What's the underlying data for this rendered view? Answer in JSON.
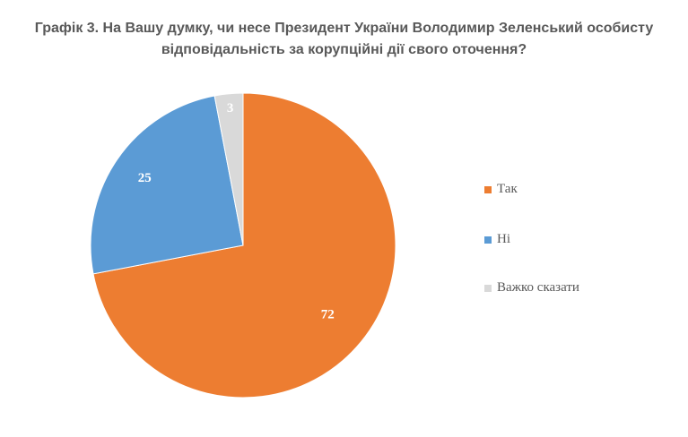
{
  "chart_data": {
    "type": "pie",
    "title_lines": [
      "Графік 3. На Вашу думку, чи несе Президент України Володимир Зеленський особисту",
      "відповідальність за корупційні дії свого оточення?"
    ],
    "categories": [
      "Так",
      "Ні",
      "Важко сказати"
    ],
    "values": [
      72,
      25,
      3
    ],
    "colors": [
      "#ED7D31",
      "#5B9BD5",
      "#D9D9D9"
    ],
    "data_labels": [
      "72",
      "25",
      "3"
    ],
    "label_colors": [
      "#ffffff",
      "#ffffff",
      "#ffffff"
    ],
    "legend_position": "right",
    "start_angle_deg": 0,
    "direction": "clockwise"
  }
}
